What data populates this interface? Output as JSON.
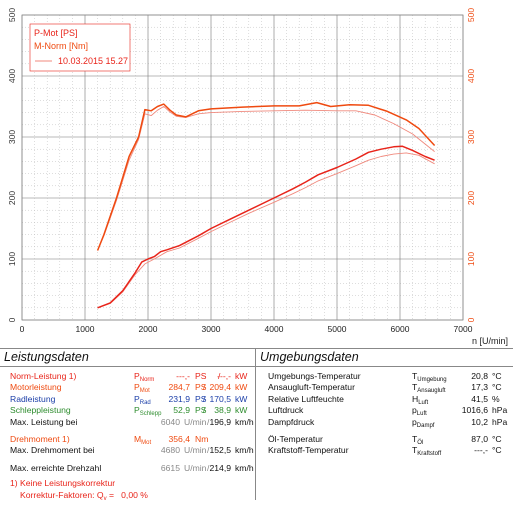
{
  "chart_data": {
    "type": "line",
    "xlabel": "n [U/min]",
    "xlim": [
      0,
      7000
    ],
    "x_ticks": [
      "0",
      "1000",
      "2000",
      "3000",
      "4000",
      "5000",
      "6000",
      "7000"
    ],
    "ylim_left": [
      0,
      500
    ],
    "ylim_right": [
      0,
      500
    ],
    "y_ticks": [
      "0",
      "100",
      "200",
      "300",
      "400",
      "500"
    ],
    "grid": true,
    "legend": {
      "position": "top-left",
      "entries": [
        "P-Mot [PS]",
        "M-Norm [Nm]",
        "10.03.2015 15.27"
      ]
    },
    "series": [
      {
        "name": "P-Mot [PS]",
        "color": "#e8241a",
        "width": 1.5,
        "points": [
          [
            1200,
            20
          ],
          [
            1400,
            28
          ],
          [
            1600,
            48
          ],
          [
            1800,
            78
          ],
          [
            1900,
            95
          ],
          [
            2000,
            100
          ],
          [
            2100,
            104
          ],
          [
            2200,
            112
          ],
          [
            2300,
            115
          ],
          [
            2500,
            122
          ],
          [
            2800,
            138
          ],
          [
            3000,
            150
          ],
          [
            3300,
            165
          ],
          [
            3600,
            180
          ],
          [
            4000,
            200
          ],
          [
            4300,
            215
          ],
          [
            4500,
            226
          ],
          [
            4700,
            238
          ],
          [
            5000,
            250
          ],
          [
            5300,
            264
          ],
          [
            5500,
            275
          ],
          [
            5700,
            280
          ],
          [
            5900,
            284
          ],
          [
            6040,
            284.7
          ],
          [
            6200,
            278
          ],
          [
            6400,
            268
          ],
          [
            6550,
            262
          ]
        ]
      },
      {
        "name": "M-Norm [Nm]",
        "color": "#ef4a10",
        "width": 1.5,
        "points": [
          [
            1200,
            114
          ],
          [
            1300,
            140
          ],
          [
            1500,
            200
          ],
          [
            1700,
            268
          ],
          [
            1850,
            300
          ],
          [
            1950,
            345
          ],
          [
            2050,
            343
          ],
          [
            2150,
            350
          ],
          [
            2250,
            354
          ],
          [
            2350,
            344
          ],
          [
            2450,
            336
          ],
          [
            2600,
            333
          ],
          [
            2800,
            343
          ],
          [
            3000,
            346
          ],
          [
            3500,
            349
          ],
          [
            4000,
            351
          ],
          [
            4400,
            351
          ],
          [
            4680,
            356.4
          ],
          [
            4900,
            350
          ],
          [
            5200,
            353
          ],
          [
            5500,
            352
          ],
          [
            5800,
            342
          ],
          [
            6100,
            328
          ],
          [
            6300,
            314
          ],
          [
            6550,
            286
          ]
        ]
      },
      {
        "name": "10.03.2015 15.27",
        "color": "#f08a7e",
        "width": 0.9,
        "points_power": [
          [
            1200,
            20
          ],
          [
            1400,
            27
          ],
          [
            1600,
            46
          ],
          [
            1800,
            75
          ],
          [
            1950,
            92
          ],
          [
            2100,
            100
          ],
          [
            2300,
            112
          ],
          [
            2500,
            118
          ],
          [
            2800,
            134
          ],
          [
            3000,
            145
          ],
          [
            3300,
            160
          ],
          [
            3600,
            175
          ],
          [
            4000,
            193
          ],
          [
            4300,
            207
          ],
          [
            4500,
            217
          ],
          [
            4700,
            228
          ],
          [
            5000,
            240
          ],
          [
            5300,
            253
          ],
          [
            5500,
            262
          ],
          [
            5700,
            268
          ],
          [
            5900,
            272
          ],
          [
            6100,
            274
          ],
          [
            6300,
            270
          ],
          [
            6550,
            256
          ]
        ],
        "points_torque": [
          [
            1200,
            114
          ],
          [
            1300,
            138
          ],
          [
            1500,
            196
          ],
          [
            1700,
            262
          ],
          [
            1850,
            296
          ],
          [
            1950,
            338
          ],
          [
            2050,
            335
          ],
          [
            2150,
            344
          ],
          [
            2250,
            350
          ],
          [
            2350,
            341
          ],
          [
            2450,
            334
          ],
          [
            2600,
            332
          ],
          [
            2800,
            338
          ],
          [
            3000,
            340
          ],
          [
            3500,
            342
          ],
          [
            4000,
            343
          ],
          [
            4500,
            344
          ],
          [
            5000,
            343
          ],
          [
            5300,
            343
          ],
          [
            5600,
            336
          ],
          [
            5900,
            322
          ],
          [
            6200,
            305
          ],
          [
            6550,
            276
          ]
        ]
      }
    ]
  },
  "leistung": {
    "title": "Leistungsdaten",
    "rows": [
      {
        "label": "Norm-Leistung 1)",
        "sym": "P",
        "sub": "Norm",
        "v1": "---,-",
        "u1": "PS",
        "sep": "/",
        "v2": "---,-",
        "u2": "kW"
      },
      {
        "label": "Motorleistung",
        "sym": "P",
        "sub": "Mot",
        "v1": "284,7",
        "u1": "PS",
        "sep": "/",
        "v2": "209,4",
        "u2": "kW"
      },
      {
        "label": "Radleistung",
        "sym": "P",
        "sub": "Rad",
        "v1": "231,9",
        "u1": "PS",
        "sep": "/",
        "v2": "170,5",
        "u2": "kW"
      },
      {
        "label": "Schleppleistung",
        "sym": "P",
        "sub": "Schlepp",
        "v1": "52,9",
        "u1": "PS",
        "sep": "/",
        "v2": "38,9",
        "u2": "kW"
      },
      {
        "label": "Max. Leistung bei",
        "v1": "6040",
        "u1": "U/min",
        "sep": "/",
        "v2": "196,9",
        "u2": "km/h"
      },
      {
        "label": "Drehmoment 1)",
        "sym": "M",
        "sub": "Mot",
        "v1": "356,4",
        "u1": "Nm"
      },
      {
        "label": "Max. Drehmoment bei",
        "v1": "4680",
        "u1": "U/min",
        "sep": "/",
        "v2": "152,5",
        "u2": "km/h"
      },
      {
        "label": "Max. erreichte Drehzahl",
        "v1": "6615",
        "u1": "U/min",
        "sep": "/",
        "v2": "214,9",
        "u2": "km/h"
      }
    ],
    "footnote1": "1) Keine Leistungskorrektur",
    "footnote2_pre": "Korrektur-Faktoren: Q",
    "footnote2_sub": "v",
    "footnote2_post": " =   0,00 %"
  },
  "umgebung": {
    "title": "Umgebungsdaten",
    "rows": [
      {
        "label": "Umgebungs-Temperatur",
        "sym": "T",
        "sub": "Umgebung",
        "val": "20,8",
        "unit": "°C"
      },
      {
        "label": "Ansaugluft-Temperatur",
        "sym": "T",
        "sub": "Ansaugluft",
        "val": "17,3",
        "unit": "°C"
      },
      {
        "label": "Relative Luftfeuchte",
        "sym": "H",
        "sub": "Luft",
        "val": "41,5",
        "unit": "%"
      },
      {
        "label": "Luftdruck",
        "sym": "p",
        "sub": "Luft",
        "val": "1016,6",
        "unit": "hPa"
      },
      {
        "label": "Dampfdruck",
        "sym": "p",
        "sub": "Dampf",
        "val": "10,2",
        "unit": "hPa"
      },
      {
        "label": "Öl-Temperatur",
        "sym": "T",
        "sub": "Öl",
        "val": "87,0",
        "unit": "°C"
      },
      {
        "label": "Kraftstoff-Temperatur",
        "sym": "T",
        "sub": "Kraftstoff",
        "val": "---,-",
        "unit": "°C"
      }
    ]
  }
}
